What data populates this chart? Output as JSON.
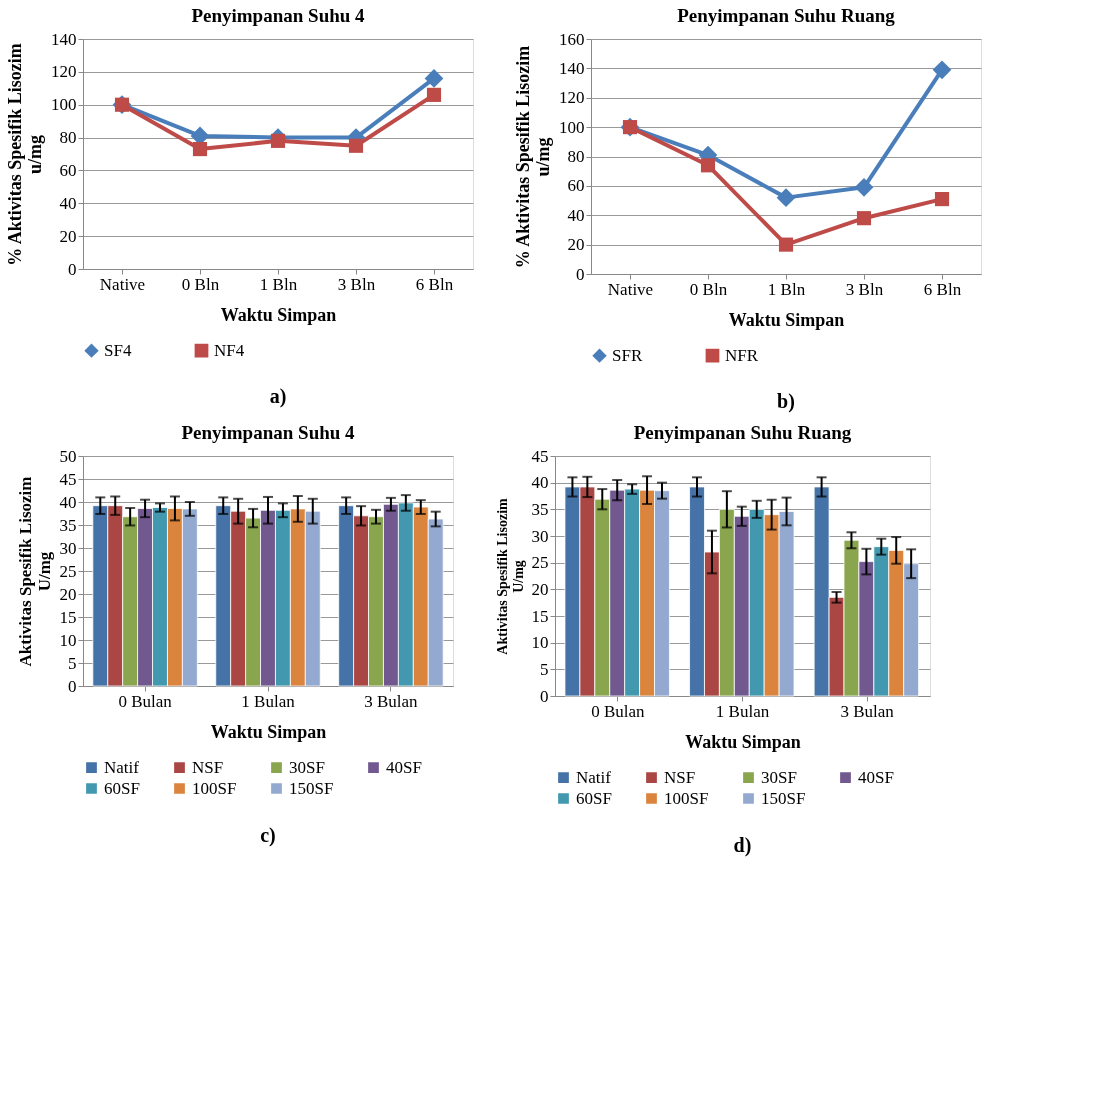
{
  "chart_data": [
    {
      "type": "line",
      "title": "Penyimpanan Suhu 4",
      "xlabel": "Waktu Simpan",
      "ylabel": "% Aktivitas Spesifik  Lisozim\nu/mg",
      "categories": [
        "Native",
        "0 Bln",
        "1 Bln",
        "3 Bln",
        "6 Bln"
      ],
      "series": [
        {
          "name": "SF4",
          "color": "#4a7ebb",
          "marker": "diamond",
          "values": [
            100,
            81,
            80,
            80,
            116
          ]
        },
        {
          "name": "NF4",
          "color": "#be4b48",
          "marker": "square",
          "values": [
            100,
            73,
            78,
            75,
            106
          ]
        }
      ],
      "ylim": [
        0,
        140
      ],
      "yticks": [
        0,
        20,
        40,
        60,
        80,
        100,
        120,
        140
      ],
      "grid": "y",
      "legend": "bottom",
      "line_style": "solid",
      "annotations": [
        "a)"
      ]
    },
    {
      "type": "line",
      "title": "Penyimpanan Suhu Ruang",
      "xlabel": "Waktu Simpan",
      "ylabel": "% Aktivitas Spesifik  Lisozim\nu/mg",
      "categories": [
        "Native",
        "0 Bln",
        "1 Bln",
        "3 Bln",
        "6 Bln"
      ],
      "series": [
        {
          "name": "SFR",
          "color": "#4a7ebb",
          "marker": "diamond",
          "values": [
            100,
            81,
            52,
            59,
            139
          ]
        },
        {
          "name": "NFR",
          "color": "#be4b48",
          "marker": "square",
          "values": [
            100,
            74,
            20,
            38,
            51
          ]
        }
      ],
      "ylim": [
        0,
        160
      ],
      "yticks": [
        0,
        20,
        40,
        60,
        80,
        100,
        120,
        140,
        160
      ],
      "grid": "y",
      "legend": "bottom",
      "line_style": "solid",
      "annotations": [
        "b)"
      ]
    },
    {
      "type": "bar",
      "title": "Penyimpanan Suhu 4",
      "xlabel": "Waktu Simpan",
      "ylabel": "Aktivitas Spesifik  Lisozim\nU/mg",
      "categories": [
        "0 Bulan",
        "1 Bulan",
        "3 Bulan"
      ],
      "series": [
        {
          "name": "Natif",
          "color": "#4572a7",
          "values": [
            39.2,
            39.2,
            39.2
          ],
          "errors": [
            1.8,
            1.8,
            1.8
          ]
        },
        {
          "name": "NSF",
          "color": "#aa4643",
          "values": [
            39.2,
            38.0,
            37.0
          ],
          "errors": [
            2.0,
            2.7,
            2.1
          ]
        },
        {
          "name": "30SF",
          "color": "#89a54e",
          "values": [
            36.8,
            36.5,
            36.8
          ],
          "errors": [
            1.9,
            2.0,
            1.5
          ]
        },
        {
          "name": "40SF",
          "color": "#71588f",
          "values": [
            38.6,
            38.2,
            39.5
          ],
          "errors": [
            1.9,
            2.9,
            1.4
          ]
        },
        {
          "name": "60SF",
          "color": "#4198af",
          "values": [
            38.8,
            38.2,
            39.8
          ],
          "errors": [
            0.9,
            1.5,
            1.7
          ]
        },
        {
          "name": "100SF",
          "color": "#db843d",
          "values": [
            38.6,
            38.5,
            38.9
          ],
          "errors": [
            2.6,
            2.8,
            1.5
          ]
        },
        {
          "name": "150SF",
          "color": "#93a9cf",
          "values": [
            38.5,
            38.0,
            36.3
          ],
          "errors": [
            1.5,
            2.7,
            1.6
          ]
        }
      ],
      "ylim": [
        0,
        50
      ],
      "yticks": [
        0,
        5,
        10,
        15,
        20,
        25,
        30,
        35,
        40,
        45,
        50
      ],
      "grid": "y",
      "legend": "bottom",
      "annotations": [
        "c)"
      ]
    },
    {
      "type": "bar",
      "title": "Penyimpanan Suhu Ruang",
      "xlabel": "Waktu Simpan",
      "ylabel": "Aktivitas Spesifik  Lisozim\nU/mg",
      "categories": [
        "0 Bulan",
        "1 Bulan",
        "3 Bulan"
      ],
      "series": [
        {
          "name": "Natif",
          "color": "#4572a7",
          "values": [
            39.2,
            39.2,
            39.2
          ],
          "errors": [
            1.8,
            1.8,
            1.8
          ]
        },
        {
          "name": "NSF",
          "color": "#aa4643",
          "values": [
            39.2,
            27.0,
            18.5
          ],
          "errors": [
            1.9,
            4.0,
            1.0
          ]
        },
        {
          "name": "30SF",
          "color": "#89a54e",
          "values": [
            36.9,
            35.0,
            29.2
          ],
          "errors": [
            1.9,
            3.4,
            1.5
          ]
        },
        {
          "name": "40SF",
          "color": "#71588f",
          "values": [
            38.6,
            33.7,
            25.2
          ],
          "errors": [
            1.9,
            1.8,
            2.4
          ]
        },
        {
          "name": "60SF",
          "color": "#4198af",
          "values": [
            38.8,
            35.0,
            28.0
          ],
          "errors": [
            0.9,
            1.6,
            1.5
          ]
        },
        {
          "name": "100SF",
          "color": "#db843d",
          "values": [
            38.6,
            34.0,
            27.3
          ],
          "errors": [
            2.6,
            2.8,
            2.5
          ]
        },
        {
          "name": "150SF",
          "color": "#93a9cf",
          "values": [
            38.5,
            34.6,
            24.8
          ],
          "errors": [
            1.5,
            2.6,
            2.7
          ]
        }
      ],
      "ylim": [
        0,
        45
      ],
      "yticks": [
        0,
        5,
        10,
        15,
        20,
        25,
        30,
        35,
        40,
        45
      ],
      "grid": "y",
      "legend": "bottom",
      "annotations": [
        "d)"
      ]
    }
  ]
}
